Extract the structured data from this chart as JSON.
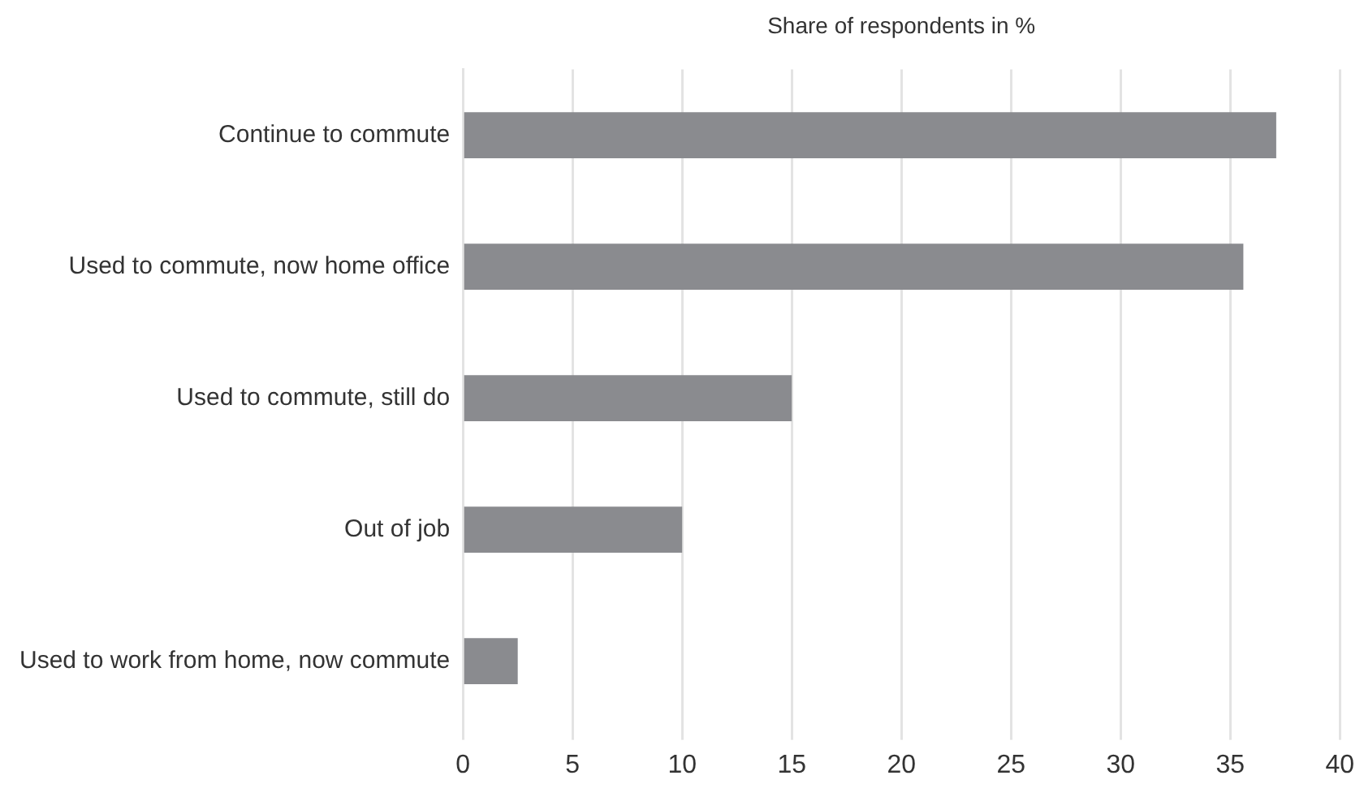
{
  "chart_data": {
    "type": "bar",
    "orientation": "horizontal",
    "xlabel": "Share of respondents in %",
    "categories": [
      "Continue to commute",
      "Used to commute, now home office",
      "Used to commute, still do",
      "Out of job",
      "Used to work from home, now commute"
    ],
    "values": [
      37.1,
      35.6,
      15.0,
      10.0,
      2.5
    ],
    "color": "#8a8b8f",
    "xlim": [
      0,
      40
    ],
    "xticks": [
      0,
      5,
      10,
      15,
      20,
      25,
      30,
      35,
      40
    ],
    "grid": "x",
    "legend": false
  }
}
